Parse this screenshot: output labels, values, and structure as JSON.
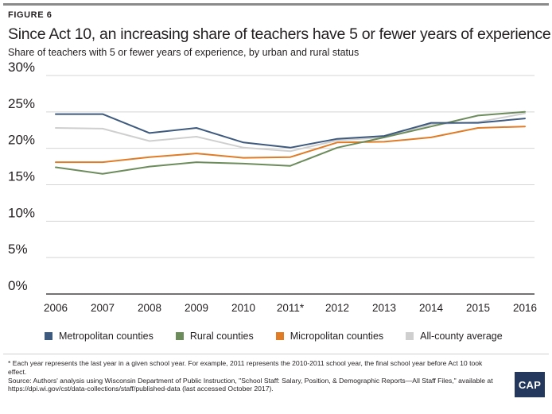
{
  "header": {
    "figure_label": "FIGURE 6",
    "title": "Since Act 10, an increasing share of teachers have 5 or fewer years of experience",
    "subtitle": "Share of teachers with 5 or fewer years of experience, by urban and rural status"
  },
  "colors": {
    "accent_rule": "#8a8a8a",
    "metropolitan": "#3e5a7e",
    "rural": "#6c8c5b",
    "micropolitan": "#e07b26",
    "all_county": "#cfcfcf",
    "gridline": "#d4d4d4",
    "logo_bg": "#23385c"
  },
  "chart_data": {
    "type": "line",
    "title": "Since Act 10, an increasing share of teachers have 5 or fewer years of experience",
    "subtitle": "Share of teachers with 5 or fewer years of experience, by urban and rural status",
    "xlabel": "",
    "ylabel": "",
    "categories": [
      "2006",
      "2007",
      "2008",
      "2009",
      "2010",
      "2011*",
      "2012",
      "2013",
      "2014",
      "2015",
      "2016"
    ],
    "ylim": [
      0,
      30
    ],
    "yticks": [
      0,
      5,
      10,
      15,
      20,
      25,
      30
    ],
    "ytick_labels": [
      "0%",
      "5%",
      "10%",
      "15%",
      "20%",
      "25%",
      "30%"
    ],
    "grid": true,
    "legend_position": "bottom",
    "series": [
      {
        "name": "Metropolitan counties",
        "color_key": "metropolitan",
        "values": [
          24.7,
          24.7,
          22.1,
          22.8,
          20.8,
          20.1,
          21.3,
          21.7,
          23.5,
          23.5,
          24.1
        ]
      },
      {
        "name": "Rural counties",
        "color_key": "rural",
        "values": [
          17.4,
          16.5,
          17.5,
          18.1,
          17.9,
          17.6,
          20.1,
          21.5,
          23.0,
          24.5,
          25.0
        ]
      },
      {
        "name": "Micropolitan counties",
        "color_key": "micropolitan",
        "values": [
          18.1,
          18.1,
          18.8,
          19.3,
          18.7,
          18.8,
          20.8,
          20.9,
          21.5,
          22.8,
          23.0
        ]
      },
      {
        "name": "All-county average",
        "color_key": "all_county",
        "values": [
          22.8,
          22.7,
          21.0,
          21.6,
          20.1,
          19.6,
          21.1,
          21.5,
          23.3,
          23.6,
          24.8
        ]
      }
    ]
  },
  "footer": {
    "note_line1": "* Each year represents the last year in a given school year. For example, 2011 represents the 2010-2011 school year, the final school year before Act 10 took effect.",
    "note_line2": "Source: Authors' analysis using Wisconsin Department of Public Instruction, \"School Staff: Salary, Position, & Demographic Reports—All Staff Files,\" available at https://dpi.wi.gov/cst/data-collections/staff/published-data (last accessed October 2017).",
    "logo_text": "CAP"
  }
}
